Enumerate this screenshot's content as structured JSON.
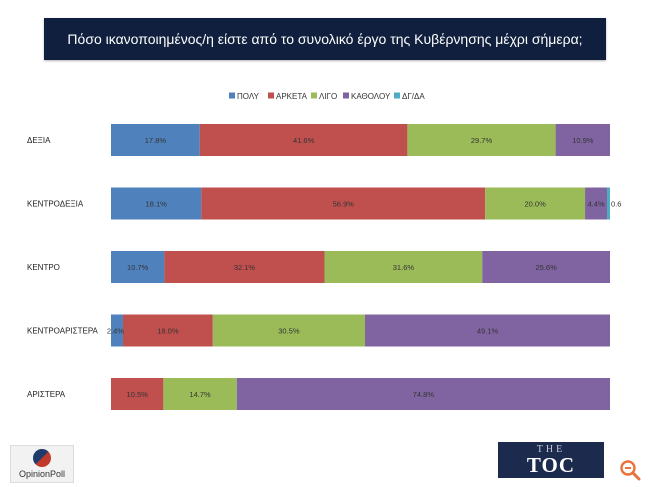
{
  "title": "Πόσο ικανοποιημένος/η είστε από το συνολικό έργο της Κυβέρνησης μέχρι σήμερα;",
  "colors": {
    "ΠΟΛΥ": "#4f81bd",
    "ΑΡΚΕΤΑ": "#c0504d",
    "ΛΙΓΟ": "#9bbb59",
    "ΚΑΘΟΛΟΥ": "#8064a2",
    "ΔΓ/ΔΑ": "#4bacc6"
  },
  "chart_data": {
    "type": "bar",
    "orientation": "horizontal",
    "stacked": true,
    "xlim": [
      0,
      100
    ],
    "legend_position": "top",
    "categories": [
      "ΔΕΞΙΑ",
      "ΚΕΝΤΡΟΔΕΞΙΑ",
      "ΚΕΝΤΡΟ",
      "ΚΕΝΤΡΟΑΡΙΣΤΕΡΑ",
      "ΑΡΙΣΤΕΡΑ"
    ],
    "series": [
      {
        "name": "ΠΟΛΥ",
        "values": [
          17.8,
          18.1,
          10.7,
          2.4,
          0
        ],
        "labels": [
          "17.8%",
          "18.1%",
          "10.7%",
          "2.4%",
          ""
        ]
      },
      {
        "name": "ΑΡΚΕΤΑ",
        "values": [
          41.6,
          56.9,
          32.1,
          18.0,
          10.5
        ],
        "labels": [
          "41.6%",
          "56.9%",
          "32.1%",
          "18.0%",
          "10.5%"
        ]
      },
      {
        "name": "ΛΙΓΟ",
        "values": [
          29.7,
          20.0,
          31.6,
          30.5,
          14.7
        ],
        "labels": [
          "29.7%",
          "20.0%",
          "31.6%",
          "30.5%",
          "14.7%"
        ]
      },
      {
        "name": "ΚΑΘΟΛΟΥ",
        "values": [
          10.9,
          4.4,
          25.6,
          49.1,
          74.8
        ],
        "labels": [
          "10.9%",
          "4.4%",
          "25.6%",
          "49.1%",
          "74.8%"
        ]
      },
      {
        "name": "ΔΓ/ΔΑ",
        "values": [
          0,
          0.6,
          0,
          0,
          0
        ],
        "labels": [
          "",
          "0.6",
          "",
          "",
          ""
        ]
      }
    ]
  },
  "logos": {
    "opinionpoll": "OpinionPoll",
    "toc_small": "THE",
    "toc_big": "TOC"
  },
  "icons": {
    "zoom": "zoom-icon"
  }
}
